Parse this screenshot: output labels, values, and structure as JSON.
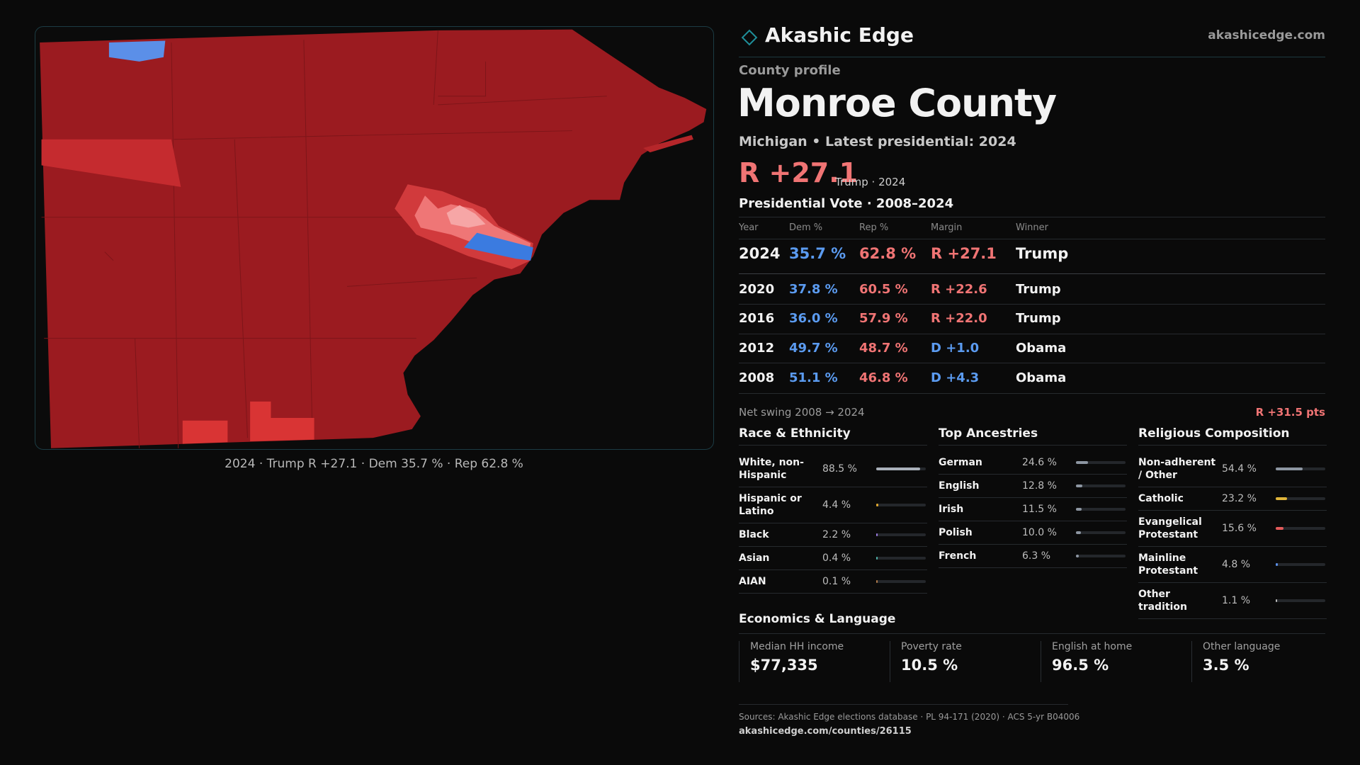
{
  "header": {
    "brand": "Akashic Edge",
    "site": "akashicedge.com"
  },
  "map": {
    "caption": "2024 · Trump R +27.1 · Dem 35.7 % · Rep 62.8 %"
  },
  "profile": {
    "kicker": "County profile",
    "title": "Monroe County",
    "subtitle": "Michigan • Latest presidential: 2024",
    "headline": "R +27.1",
    "headline_note": "Trump · 2024"
  },
  "vote_table": {
    "title": "Presidential Vote · 2008–2024",
    "columns": [
      "Year",
      "Dem %",
      "Rep %",
      "Margin",
      "Winner"
    ],
    "rows": [
      [
        "2024",
        "35.7 %",
        "62.8 %",
        "R +27.1",
        "Trump"
      ],
      [
        "2020",
        "37.8 %",
        "60.5 %",
        "R +22.6",
        "Trump"
      ],
      [
        "2016",
        "36.0 %",
        "57.9 %",
        "R +22.0",
        "Trump"
      ],
      [
        "2012",
        "49.7 %",
        "48.7 %",
        "D +1.0",
        "Obama"
      ],
      [
        "2008",
        "51.1 %",
        "46.8 %",
        "D +4.3",
        "Obama"
      ]
    ]
  },
  "net_swing": {
    "label": "Net swing 2008 → 2024",
    "value": "R +31.5 pts"
  },
  "demographics": [
    {
      "title": "Race & Ethnicity",
      "items": [
        {
          "label": "White, non-Hispanic",
          "value": 88.5,
          "value_label": "88.5 %",
          "color": "#a9b0ba"
        },
        {
          "label": "Hispanic or Latino",
          "value": 4.4,
          "value_label": "4.4 %",
          "color": "#e0a82e"
        },
        {
          "label": "Black",
          "value": 2.2,
          "value_label": "2.2 %",
          "color": "#9b7be0"
        },
        {
          "label": "Asian",
          "value": 0.4,
          "value_label": "0.4 %",
          "color": "#4fb3a9"
        },
        {
          "label": "AIAN",
          "value": 0.1,
          "value_label": "0.1 %",
          "color": "#b07a4a"
        }
      ]
    },
    {
      "title": "Top Ancestries",
      "items": [
        {
          "label": "German",
          "value": 24.6,
          "value_label": "24.6 %",
          "color": "#8d96a2"
        },
        {
          "label": "English",
          "value": 12.8,
          "value_label": "12.8 %",
          "color": "#8d96a2"
        },
        {
          "label": "Irish",
          "value": 11.5,
          "value_label": "11.5 %",
          "color": "#8d96a2"
        },
        {
          "label": "Polish",
          "value": 10.0,
          "value_label": "10.0 %",
          "color": "#8d96a2"
        },
        {
          "label": "French",
          "value": 6.3,
          "value_label": "6.3 %",
          "color": "#8d96a2"
        }
      ]
    },
    {
      "title": "Religious Composition",
      "items": [
        {
          "label": "Non-adherent / Other",
          "value": 54.4,
          "value_label": "54.4 %",
          "color": "#8d96a2"
        },
        {
          "label": "Catholic",
          "value": 23.2,
          "value_label": "23.2 %",
          "color": "#e0b53a"
        },
        {
          "label": "Evangelical Protestant",
          "value": 15.6,
          "value_label": "15.6 %",
          "color": "#e35a5a"
        },
        {
          "label": "Mainline Protestant",
          "value": 4.8,
          "value_label": "4.8 %",
          "color": "#5b8fe8"
        },
        {
          "label": "Other tradition",
          "value": 1.1,
          "value_label": "1.1 %",
          "color": "#bbbbbb"
        }
      ]
    }
  ],
  "economics": {
    "title": "Economics & Language",
    "items": [
      {
        "label": "Median HH income",
        "value": "$77,335"
      },
      {
        "label": "Poverty rate",
        "value": "10.5 %"
      },
      {
        "label": "English at home",
        "value": "96.5 %"
      },
      {
        "label": "Other language",
        "value": "3.5 %"
      }
    ]
  },
  "sources": {
    "text": "Sources: Akashic Edge elections database · PL 94-171 (2020) · ACS 5-yr B04006",
    "url": "akashicedge.com/counties/26115"
  }
}
